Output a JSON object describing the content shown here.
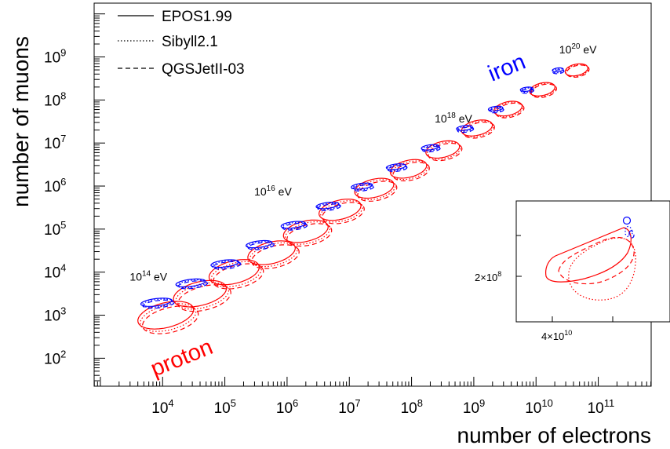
{
  "chart_data": {
    "type": "scatter",
    "xlabel": "number of electrons",
    "ylabel": "number of muons",
    "xscale": "log",
    "yscale": "log",
    "xlim_log10": [
      2.9,
      11.85
    ],
    "ylim_log10": [
      1.35,
      10.25
    ],
    "x_ticks": [
      {
        "exp": 4,
        "label_base": "10",
        "label_exp": "4"
      },
      {
        "exp": 5,
        "label_base": "10",
        "label_exp": "5"
      },
      {
        "exp": 6,
        "label_base": "10",
        "label_exp": "6"
      },
      {
        "exp": 7,
        "label_base": "10",
        "label_exp": "7"
      },
      {
        "exp": 8,
        "label_base": "10",
        "label_exp": "8"
      },
      {
        "exp": 9,
        "label_base": "10",
        "label_exp": "9"
      },
      {
        "exp": 10,
        "label_base": "10",
        "label_exp": "10"
      },
      {
        "exp": 11,
        "label_base": "10",
        "label_exp": "11"
      }
    ],
    "y_ticks": [
      {
        "exp": 2,
        "label_base": "10",
        "label_exp": "2"
      },
      {
        "exp": 3,
        "label_base": "10",
        "label_exp": "3"
      },
      {
        "exp": 4,
        "label_base": "10",
        "label_exp": "4"
      },
      {
        "exp": 5,
        "label_base": "10",
        "label_exp": "5"
      },
      {
        "exp": 6,
        "label_base": "10",
        "label_exp": "6"
      },
      {
        "exp": 7,
        "label_base": "10",
        "label_exp": "7"
      },
      {
        "exp": 8,
        "label_base": "10",
        "label_exp": "8"
      },
      {
        "exp": 9,
        "label_base": "10",
        "label_exp": "9"
      }
    ],
    "legend": {
      "placement": "top-left",
      "entries": [
        {
          "name": "EPOS1.99",
          "style": "solid"
        },
        {
          "name": "Sibyll2.1",
          "style": "dotted"
        },
        {
          "name": "QGSJetII-03",
          "style": "dashed"
        }
      ]
    },
    "primaries": [
      {
        "name": "proton",
        "color": "#ff0000"
      },
      {
        "name": "iron",
        "color": "#0000ff"
      }
    ],
    "energy_labels": [
      {
        "base": "10",
        "exp": "14",
        "unit": "eV",
        "log_e": 3.75,
        "log_mu": 3.8
      },
      {
        "base": "10",
        "exp": "16",
        "unit": "eV",
        "log_e": 5.75,
        "log_mu": 5.78
      },
      {
        "base": "10",
        "exp": "18",
        "unit": "eV",
        "log_e": 8.65,
        "log_mu": 7.48
      },
      {
        "base": "10",
        "exp": "20",
        "unit": "eV",
        "log_e": 10.65,
        "log_mu": 9.08
      }
    ],
    "energy_bins_log10": [
      14.0,
      14.5,
      15.0,
      15.5,
      16.0,
      16.5,
      17.0,
      17.5,
      18.0,
      18.5,
      19.0,
      19.5,
      20.0
    ],
    "proton_log_electrons": [
      4.05,
      4.6,
      5.15,
      5.75,
      6.3,
      6.85,
      7.4,
      7.95,
      8.5,
      9.05,
      9.55,
      10.1,
      10.65
    ],
    "proton_log_muons": [
      3.0,
      3.5,
      4.0,
      4.45,
      4.95,
      5.45,
      5.95,
      6.4,
      6.85,
      7.35,
      7.8,
      8.25,
      8.7
    ],
    "iron_log_electrons": [
      3.9,
      4.45,
      5.0,
      5.55,
      6.1,
      6.65,
      7.2,
      7.75,
      8.3,
      8.85,
      9.35,
      9.85,
      10.35
    ],
    "iron_log_muons": [
      3.3,
      3.75,
      4.2,
      4.65,
      5.1,
      5.55,
      6.0,
      6.45,
      6.9,
      7.35,
      7.8,
      8.25,
      8.7
    ],
    "inset": {
      "x_tick_label": "4×10",
      "x_tick_exp": "10",
      "y_tick_label": "2×10",
      "y_tick_exp": "8"
    }
  }
}
